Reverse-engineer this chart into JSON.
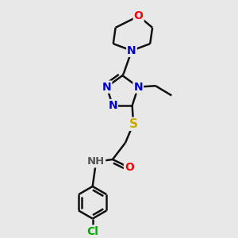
{
  "bg_color": "#e8e8e8",
  "atom_colors": {
    "N": "#0000cc",
    "O": "#ff0000",
    "S": "#ccaa00",
    "Cl": "#00aa00",
    "H": "#555555"
  },
  "bond_color": "#111111",
  "bond_width": 1.8
}
